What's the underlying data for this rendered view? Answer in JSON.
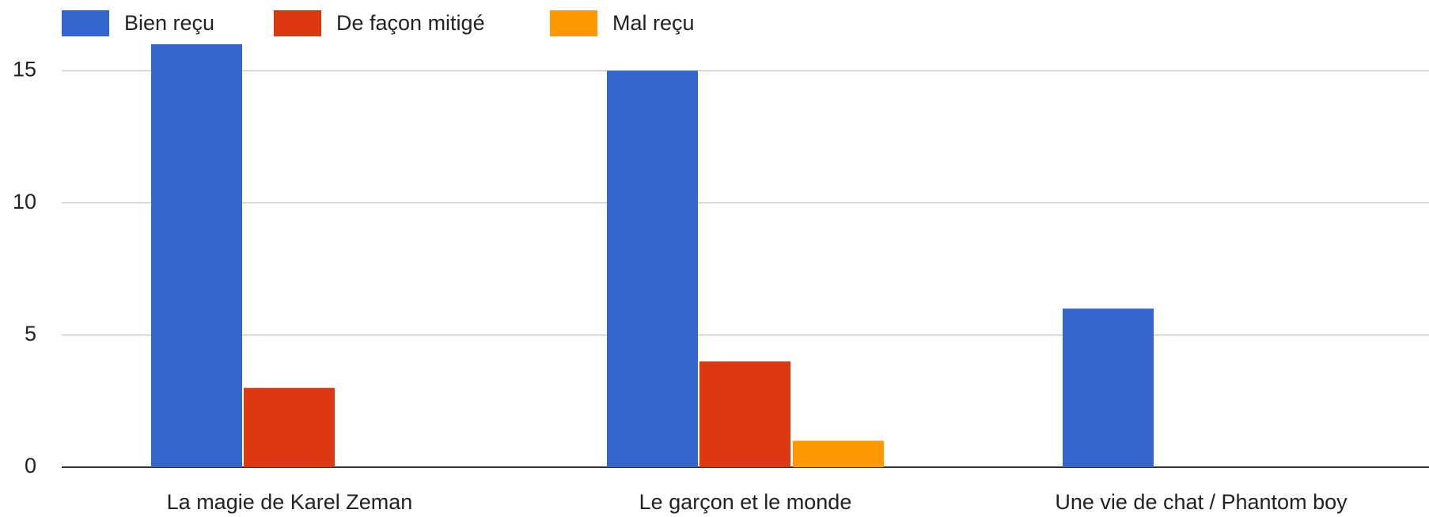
{
  "chart_data": {
    "type": "bar",
    "categories": [
      "La magie de Karel Zeman",
      "Le garçon et le monde",
      "Une vie de chat / Phantom boy"
    ],
    "series": [
      {
        "name": "Bien reçu",
        "color": "#3366cc",
        "values": [
          16,
          15,
          6
        ]
      },
      {
        "name": "De façon mitigé",
        "color": "#dc3912",
        "values": [
          3,
          4,
          0
        ]
      },
      {
        "name": "Mal reçu",
        "color": "#ff9900",
        "values": [
          0,
          1,
          0
        ]
      }
    ],
    "ylim": [
      0,
      16
    ],
    "yticks": [
      0,
      5,
      10,
      15
    ],
    "grid": true,
    "legend": "top"
  }
}
